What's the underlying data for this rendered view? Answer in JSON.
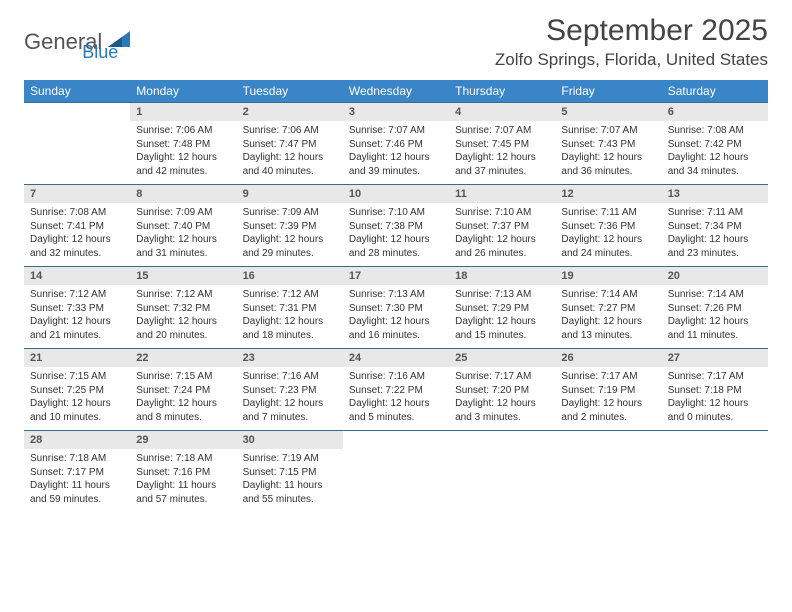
{
  "brand": {
    "part1": "General",
    "part2": "Blue"
  },
  "title": "September 2025",
  "location": "Zolfo Springs, Florida, United States",
  "colors": {
    "header_bg": "#3a85c8",
    "header_text": "#ffffff",
    "daynum_bg": "#e8e8e8",
    "border": "#3a6a8a",
    "brand_accent": "#2a7ab8"
  },
  "weekdays": [
    "Sunday",
    "Monday",
    "Tuesday",
    "Wednesday",
    "Thursday",
    "Friday",
    "Saturday"
  ],
  "weeks": [
    {
      "days": [
        {
          "n": "",
          "sunrise": "",
          "sunset": "",
          "daylight1": "",
          "daylight2": ""
        },
        {
          "n": "1",
          "sunrise": "Sunrise: 7:06 AM",
          "sunset": "Sunset: 7:48 PM",
          "daylight1": "Daylight: 12 hours",
          "daylight2": "and 42 minutes."
        },
        {
          "n": "2",
          "sunrise": "Sunrise: 7:06 AM",
          "sunset": "Sunset: 7:47 PM",
          "daylight1": "Daylight: 12 hours",
          "daylight2": "and 40 minutes."
        },
        {
          "n": "3",
          "sunrise": "Sunrise: 7:07 AM",
          "sunset": "Sunset: 7:46 PM",
          "daylight1": "Daylight: 12 hours",
          "daylight2": "and 39 minutes."
        },
        {
          "n": "4",
          "sunrise": "Sunrise: 7:07 AM",
          "sunset": "Sunset: 7:45 PM",
          "daylight1": "Daylight: 12 hours",
          "daylight2": "and 37 minutes."
        },
        {
          "n": "5",
          "sunrise": "Sunrise: 7:07 AM",
          "sunset": "Sunset: 7:43 PM",
          "daylight1": "Daylight: 12 hours",
          "daylight2": "and 36 minutes."
        },
        {
          "n": "6",
          "sunrise": "Sunrise: 7:08 AM",
          "sunset": "Sunset: 7:42 PM",
          "daylight1": "Daylight: 12 hours",
          "daylight2": "and 34 minutes."
        }
      ]
    },
    {
      "days": [
        {
          "n": "7",
          "sunrise": "Sunrise: 7:08 AM",
          "sunset": "Sunset: 7:41 PM",
          "daylight1": "Daylight: 12 hours",
          "daylight2": "and 32 minutes."
        },
        {
          "n": "8",
          "sunrise": "Sunrise: 7:09 AM",
          "sunset": "Sunset: 7:40 PM",
          "daylight1": "Daylight: 12 hours",
          "daylight2": "and 31 minutes."
        },
        {
          "n": "9",
          "sunrise": "Sunrise: 7:09 AM",
          "sunset": "Sunset: 7:39 PM",
          "daylight1": "Daylight: 12 hours",
          "daylight2": "and 29 minutes."
        },
        {
          "n": "10",
          "sunrise": "Sunrise: 7:10 AM",
          "sunset": "Sunset: 7:38 PM",
          "daylight1": "Daylight: 12 hours",
          "daylight2": "and 28 minutes."
        },
        {
          "n": "11",
          "sunrise": "Sunrise: 7:10 AM",
          "sunset": "Sunset: 7:37 PM",
          "daylight1": "Daylight: 12 hours",
          "daylight2": "and 26 minutes."
        },
        {
          "n": "12",
          "sunrise": "Sunrise: 7:11 AM",
          "sunset": "Sunset: 7:36 PM",
          "daylight1": "Daylight: 12 hours",
          "daylight2": "and 24 minutes."
        },
        {
          "n": "13",
          "sunrise": "Sunrise: 7:11 AM",
          "sunset": "Sunset: 7:34 PM",
          "daylight1": "Daylight: 12 hours",
          "daylight2": "and 23 minutes."
        }
      ]
    },
    {
      "days": [
        {
          "n": "14",
          "sunrise": "Sunrise: 7:12 AM",
          "sunset": "Sunset: 7:33 PM",
          "daylight1": "Daylight: 12 hours",
          "daylight2": "and 21 minutes."
        },
        {
          "n": "15",
          "sunrise": "Sunrise: 7:12 AM",
          "sunset": "Sunset: 7:32 PM",
          "daylight1": "Daylight: 12 hours",
          "daylight2": "and 20 minutes."
        },
        {
          "n": "16",
          "sunrise": "Sunrise: 7:12 AM",
          "sunset": "Sunset: 7:31 PM",
          "daylight1": "Daylight: 12 hours",
          "daylight2": "and 18 minutes."
        },
        {
          "n": "17",
          "sunrise": "Sunrise: 7:13 AM",
          "sunset": "Sunset: 7:30 PM",
          "daylight1": "Daylight: 12 hours",
          "daylight2": "and 16 minutes."
        },
        {
          "n": "18",
          "sunrise": "Sunrise: 7:13 AM",
          "sunset": "Sunset: 7:29 PM",
          "daylight1": "Daylight: 12 hours",
          "daylight2": "and 15 minutes."
        },
        {
          "n": "19",
          "sunrise": "Sunrise: 7:14 AM",
          "sunset": "Sunset: 7:27 PM",
          "daylight1": "Daylight: 12 hours",
          "daylight2": "and 13 minutes."
        },
        {
          "n": "20",
          "sunrise": "Sunrise: 7:14 AM",
          "sunset": "Sunset: 7:26 PM",
          "daylight1": "Daylight: 12 hours",
          "daylight2": "and 11 minutes."
        }
      ]
    },
    {
      "days": [
        {
          "n": "21",
          "sunrise": "Sunrise: 7:15 AM",
          "sunset": "Sunset: 7:25 PM",
          "daylight1": "Daylight: 12 hours",
          "daylight2": "and 10 minutes."
        },
        {
          "n": "22",
          "sunrise": "Sunrise: 7:15 AM",
          "sunset": "Sunset: 7:24 PM",
          "daylight1": "Daylight: 12 hours",
          "daylight2": "and 8 minutes."
        },
        {
          "n": "23",
          "sunrise": "Sunrise: 7:16 AM",
          "sunset": "Sunset: 7:23 PM",
          "daylight1": "Daylight: 12 hours",
          "daylight2": "and 7 minutes."
        },
        {
          "n": "24",
          "sunrise": "Sunrise: 7:16 AM",
          "sunset": "Sunset: 7:22 PM",
          "daylight1": "Daylight: 12 hours",
          "daylight2": "and 5 minutes."
        },
        {
          "n": "25",
          "sunrise": "Sunrise: 7:17 AM",
          "sunset": "Sunset: 7:20 PM",
          "daylight1": "Daylight: 12 hours",
          "daylight2": "and 3 minutes."
        },
        {
          "n": "26",
          "sunrise": "Sunrise: 7:17 AM",
          "sunset": "Sunset: 7:19 PM",
          "daylight1": "Daylight: 12 hours",
          "daylight2": "and 2 minutes."
        },
        {
          "n": "27",
          "sunrise": "Sunrise: 7:17 AM",
          "sunset": "Sunset: 7:18 PM",
          "daylight1": "Daylight: 12 hours",
          "daylight2": "and 0 minutes."
        }
      ]
    },
    {
      "days": [
        {
          "n": "28",
          "sunrise": "Sunrise: 7:18 AM",
          "sunset": "Sunset: 7:17 PM",
          "daylight1": "Daylight: 11 hours",
          "daylight2": "and 59 minutes."
        },
        {
          "n": "29",
          "sunrise": "Sunrise: 7:18 AM",
          "sunset": "Sunset: 7:16 PM",
          "daylight1": "Daylight: 11 hours",
          "daylight2": "and 57 minutes."
        },
        {
          "n": "30",
          "sunrise": "Sunrise: 7:19 AM",
          "sunset": "Sunset: 7:15 PM",
          "daylight1": "Daylight: 11 hours",
          "daylight2": "and 55 minutes."
        },
        {
          "n": "",
          "sunrise": "",
          "sunset": "",
          "daylight1": "",
          "daylight2": ""
        },
        {
          "n": "",
          "sunrise": "",
          "sunset": "",
          "daylight1": "",
          "daylight2": ""
        },
        {
          "n": "",
          "sunrise": "",
          "sunset": "",
          "daylight1": "",
          "daylight2": ""
        },
        {
          "n": "",
          "sunrise": "",
          "sunset": "",
          "daylight1": "",
          "daylight2": ""
        }
      ]
    }
  ]
}
